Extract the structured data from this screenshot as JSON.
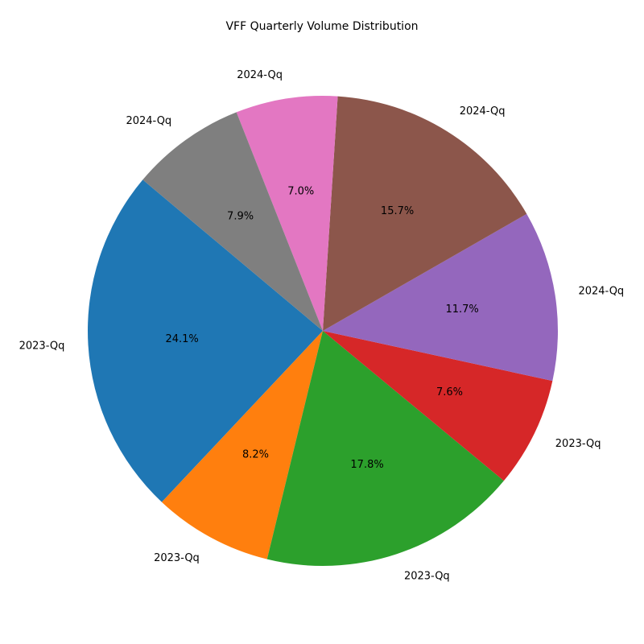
{
  "chart_data": {
    "type": "pie",
    "title": "VFF Quarterly Volume Distribution",
    "start_angle_deg": 140,
    "direction": "counterclockwise",
    "slices": [
      {
        "label": "2023-Qq",
        "value": 24.1,
        "pct_label": "24.1%",
        "color": "#1f77b4"
      },
      {
        "label": "2023-Qq",
        "value": 8.2,
        "pct_label": "8.2%",
        "color": "#ff7f0e"
      },
      {
        "label": "2023-Qq",
        "value": 17.8,
        "pct_label": "17.8%",
        "color": "#2ca02c"
      },
      {
        "label": "2023-Qq",
        "value": 7.6,
        "pct_label": "7.6%",
        "color": "#d62728"
      },
      {
        "label": "2024-Qq",
        "value": 11.7,
        "pct_label": "11.7%",
        "color": "#9467bd"
      },
      {
        "label": "2024-Qq",
        "value": 15.7,
        "pct_label": "15.7%",
        "color": "#8c564b"
      },
      {
        "label": "2024-Qq",
        "value": 7.0,
        "pct_label": "7.0%",
        "color": "#e377c2"
      },
      {
        "label": "2024-Qq",
        "value": 7.9,
        "pct_label": "7.9%",
        "color": "#7f7f7f"
      }
    ]
  }
}
